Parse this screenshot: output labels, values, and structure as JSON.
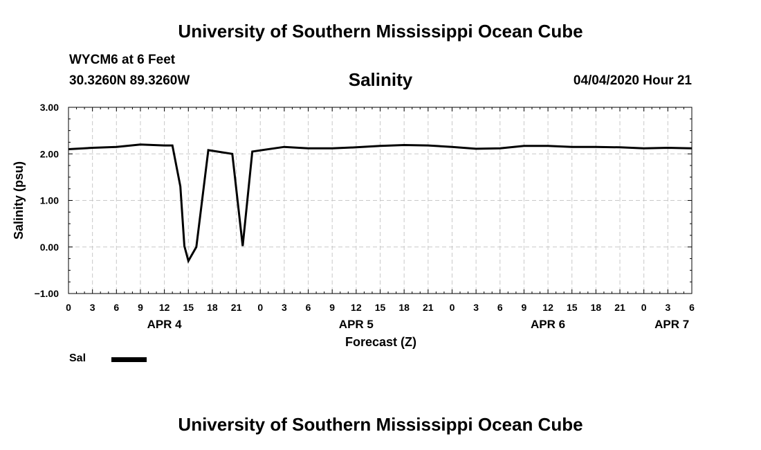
{
  "header": {
    "title": "University of Southern Mississippi Ocean Cube",
    "station": "WYCM6 at 6 Feet",
    "coords": "30.3260N 89.3260W",
    "chart_title": "Salinity",
    "date": "04/04/2020 Hour 21"
  },
  "footer": {
    "title": "University of Southern Mississippi Ocean Cube"
  },
  "legend": {
    "label": "Sal",
    "color": "#000000"
  },
  "chart_data": {
    "type": "line",
    "title": "Salinity",
    "xlabel": "Forecast (Z)",
    "ylabel": "Salinity (psu)",
    "ylim": [
      -1.0,
      3.0
    ],
    "xlim": [
      0,
      78
    ],
    "yticks": [
      -1.0,
      0.0,
      1.0,
      2.0,
      3.0
    ],
    "ytick_labels": [
      "−1.00",
      "0.00",
      "1.00",
      "2.00",
      "3.00"
    ],
    "xticks": [
      0,
      3,
      6,
      9,
      12,
      15,
      18,
      21,
      24,
      27,
      30,
      33,
      36,
      39,
      42,
      45,
      48,
      51,
      54,
      57,
      60,
      63,
      66,
      69,
      72,
      75,
      78
    ],
    "xtick_labels": [
      "0",
      "3",
      "6",
      "9",
      "12",
      "15",
      "18",
      "21",
      "0",
      "3",
      "6",
      "9",
      "12",
      "15",
      "18",
      "21",
      "0",
      "3",
      "6",
      "9",
      "12",
      "15",
      "18",
      "21",
      "0",
      "3",
      "6"
    ],
    "day_labels": [
      {
        "x": 12,
        "label": "APR 4"
      },
      {
        "x": 36,
        "label": "APR 5"
      },
      {
        "x": 60,
        "label": "APR 6"
      },
      {
        "x": 75.5,
        "label": "APR 7"
      }
    ],
    "grid": true,
    "legend_position": "bottom-left",
    "series": [
      {
        "name": "Sal",
        "color": "#000000",
        "x": [
          0,
          3,
          6,
          9,
          12,
          13,
          14,
          14.5,
          15,
          16,
          17.5,
          20.5,
          21.8,
          23,
          27,
          30,
          33,
          36,
          39,
          42,
          45,
          48,
          51,
          54,
          57,
          60,
          63,
          66,
          69,
          72,
          75,
          78
        ],
        "y": [
          2.1,
          2.13,
          2.15,
          2.2,
          2.18,
          2.18,
          1.3,
          0.02,
          -0.3,
          0.0,
          2.08,
          2.0,
          0.02,
          2.05,
          2.15,
          2.12,
          2.12,
          2.14,
          2.17,
          2.19,
          2.18,
          2.15,
          2.11,
          2.12,
          2.17,
          2.17,
          2.15,
          2.15,
          2.14,
          2.12,
          2.13,
          2.12
        ]
      }
    ]
  }
}
